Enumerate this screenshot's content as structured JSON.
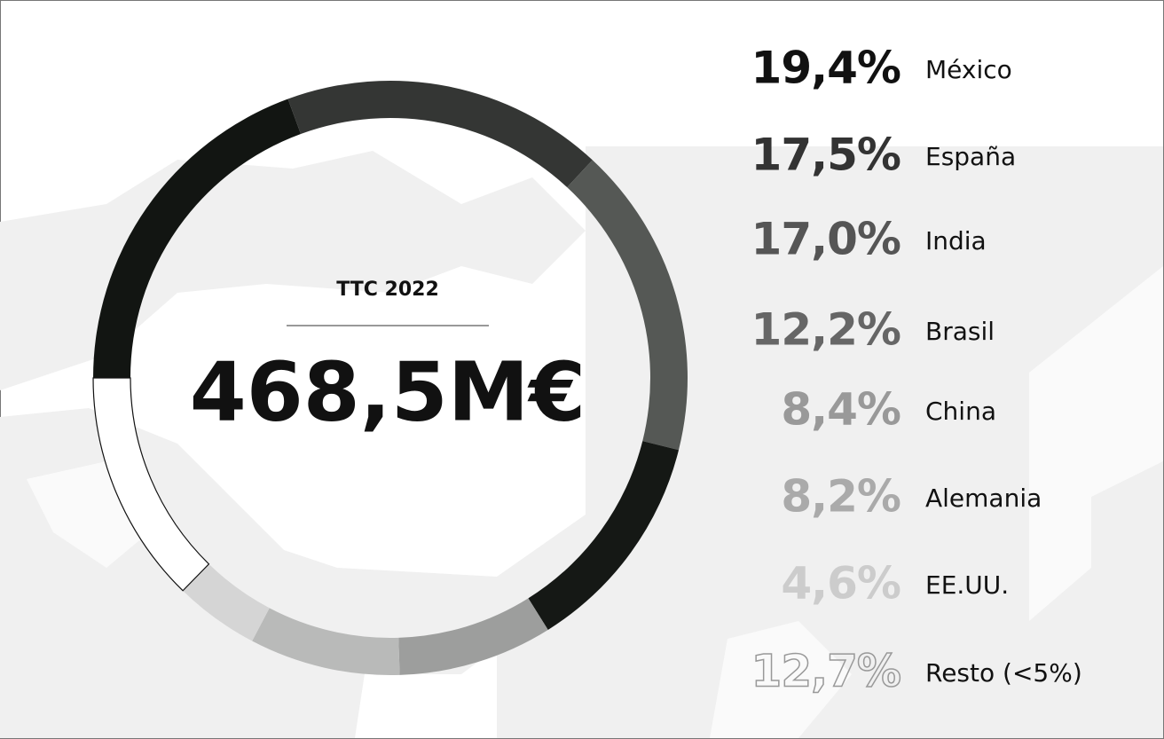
{
  "chart_data": {
    "type": "donut",
    "center_title": "TTC 2022",
    "center_value": "468,5M€",
    "categories": [
      "México",
      "España",
      "India",
      "Brasil",
      "China",
      "Alemania",
      "EE.UU.",
      "Resto (<5%)"
    ],
    "values": [
      19.4,
      17.5,
      17.0,
      12.2,
      8.4,
      8.2,
      4.6,
      12.7
    ],
    "value_labels": [
      "19,4%",
      "17,5%",
      "17,0%",
      "12,2%",
      "8,4%",
      "8,2%",
      "4,6%",
      "12,7%"
    ],
    "colors": [
      "#121512",
      "#343634",
      "#555855",
      "#151815",
      "#9d9e9d",
      "#b9bab9",
      "#d5d5d5",
      "#ffffff"
    ],
    "label_colors": [
      "#111111",
      "#333333",
      "#555555",
      "#666666",
      "#999999",
      "#aaaaaa",
      "#cccccc",
      "none"
    ]
  }
}
